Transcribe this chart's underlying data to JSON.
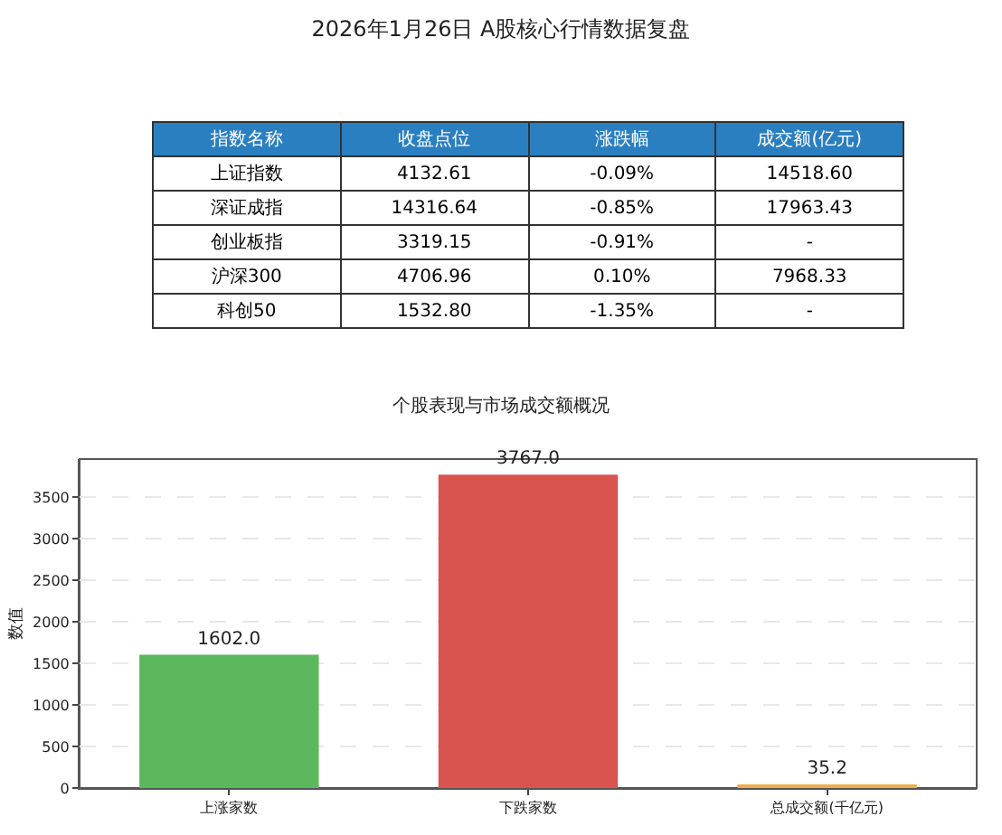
{
  "chart_data": [
    {
      "type": "other",
      "title": "2026年1月26日 A股核心行情数据复盘",
      "color": "#2a7fc1",
      "ylabel": "指数名称",
      "categories": [
        "收盘点位",
        "涨跌幅",
        "成交额(亿元)"
      ],
      "y_categories": [
        "上证指数",
        "深证成指",
        "创业板指",
        "沪深300",
        "科创50"
      ],
      "cell_labels": [
        [
          "4132.61",
          "-0.09%",
          "14518.60"
        ],
        [
          "14316.64",
          "-0.85%",
          "17963.43"
        ],
        [
          "3319.15",
          "-0.91%",
          "-"
        ],
        [
          "4706.96",
          "0.10%",
          "7968.33"
        ],
        [
          "1532.80",
          "-1.35%",
          "-"
        ]
      ]
    },
    {
      "type": "bar",
      "title": "个股表现与市场成交额概况",
      "ylabel": "数值",
      "categories": [
        "上涨家数",
        "下跌家数",
        "总成交额(千亿元)"
      ],
      "values": [
        1602,
        3767,
        35.2
      ],
      "colors": [
        "#5cb85c",
        "#d9534f",
        "#f0ad4e"
      ],
      "value_labels": [
        "1602.0",
        "3767.0",
        "35.2"
      ],
      "ylim": [
        0,
        3955
      ],
      "yticks": [
        0,
        500,
        1000,
        1500,
        2000,
        2500,
        3000,
        3500
      ],
      "grid": "y"
    }
  ]
}
